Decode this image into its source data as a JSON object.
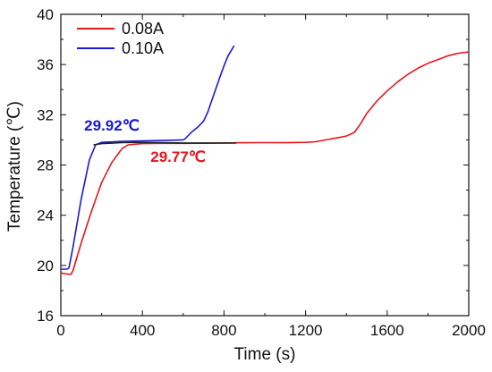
{
  "chart_data": {
    "type": "line",
    "xlabel": "Time (s)",
    "ylabel": "Temperature (℃)",
    "xlim": [
      0,
      2000
    ],
    "ylim": [
      16,
      40
    ],
    "xticks": [
      "0",
      "400",
      "800",
      "1200",
      "1600",
      "2000"
    ],
    "yticks": [
      "16",
      "20",
      "24",
      "28",
      "32",
      "36",
      "40"
    ],
    "grid": false,
    "legend_position": "top-left",
    "series": [
      {
        "name": "0.08A",
        "color": "#e8141c",
        "x": [
          0,
          20,
          40,
          50,
          60,
          100,
          150,
          200,
          250,
          300,
          330,
          400,
          500,
          600,
          700,
          800,
          900,
          1000,
          1100,
          1200,
          1250,
          1300,
          1350,
          1400,
          1440,
          1470,
          1500,
          1550,
          1600,
          1650,
          1700,
          1750,
          1800,
          1850,
          1900,
          1950,
          2000
        ],
        "y": [
          19.4,
          19.35,
          19.3,
          19.3,
          19.6,
          21.8,
          24.3,
          26.6,
          28.2,
          29.3,
          29.6,
          29.7,
          29.72,
          29.72,
          29.73,
          29.75,
          29.77,
          29.78,
          29.77,
          29.8,
          29.85,
          30.0,
          30.15,
          30.3,
          30.6,
          31.3,
          32.1,
          33.1,
          33.9,
          34.6,
          35.2,
          35.7,
          36.1,
          36.4,
          36.7,
          36.9,
          37.0
        ]
      },
      {
        "name": "0.10A",
        "color": "#1a1ad6",
        "x": [
          0,
          30,
          40,
          60,
          100,
          140,
          170,
          200,
          300,
          400,
          500,
          600,
          610,
          640,
          670,
          700,
          720,
          750,
          780,
          800,
          820,
          850
        ],
        "y": [
          19.7,
          19.7,
          19.8,
          21.5,
          25.3,
          28.4,
          29.6,
          29.8,
          29.88,
          29.92,
          29.95,
          30.0,
          30.1,
          30.6,
          31.0,
          31.5,
          32.2,
          33.6,
          35.0,
          35.9,
          36.7,
          37.5
        ]
      },
      {
        "color": "#222222",
        "x": [
          160,
          200,
          300,
          400,
          500,
          600,
          700,
          800,
          860
        ],
        "y": [
          29.6,
          29.7,
          29.78,
          29.8,
          29.78,
          29.75,
          29.75,
          29.75,
          29.75
        ]
      }
    ],
    "annotations": [
      {
        "text": "29.92℃",
        "color": "#1a1ad6",
        "x": 250,
        "y": 30.75
      },
      {
        "text": "29.77℃",
        "color": "#e8141c",
        "x": 575,
        "y": 28.25
      }
    ]
  }
}
